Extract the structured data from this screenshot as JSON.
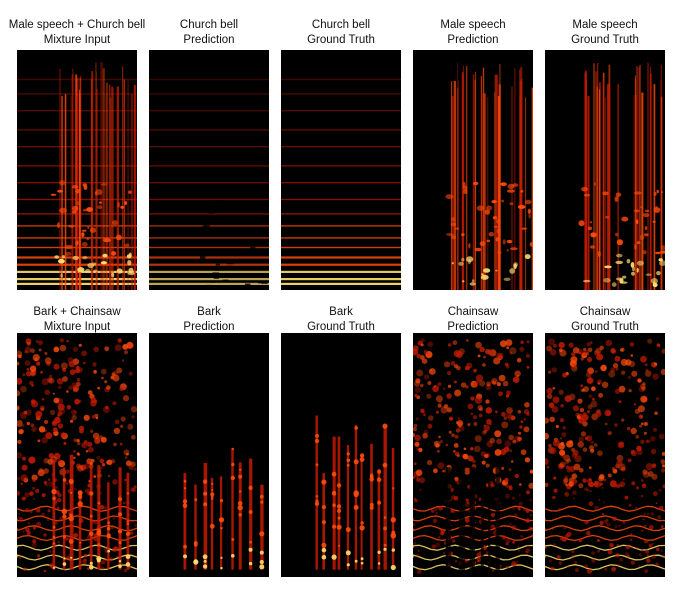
{
  "rows": [
    {
      "panels": [
        {
          "line1": "Male speech + Church bell",
          "line2": "Mixture Input",
          "content": [
            "bell",
            "speech"
          ]
        },
        {
          "line1": "Church bell",
          "line2": "Prediction",
          "content": [
            "bell_pred"
          ]
        },
        {
          "line1": "Church bell",
          "line2": "Ground Truth",
          "content": [
            "bell"
          ]
        },
        {
          "line1": "Male speech",
          "line2": "Prediction",
          "content": [
            "speech"
          ]
        },
        {
          "line1": "Male speech",
          "line2": "Ground Truth",
          "content": [
            "speech"
          ]
        }
      ]
    },
    {
      "panels": [
        {
          "line1": "Bark + Chainsaw",
          "line2": "Mixture Input",
          "content": [
            "chainsaw",
            "bark"
          ]
        },
        {
          "line1": "Bark",
          "line2": "Prediction",
          "content": [
            "bark"
          ]
        },
        {
          "line1": "Bark",
          "line2": "Ground Truth",
          "content": [
            "bark_gt"
          ]
        },
        {
          "line1": "Chainsaw",
          "line2": "Prediction",
          "content": [
            "chainsaw_pred"
          ]
        },
        {
          "line1": "Chainsaw",
          "line2": "Ground Truth",
          "content": [
            "chainsaw"
          ]
        }
      ]
    }
  ],
  "colors": {
    "background": "#000000",
    "hot": "#ff4a0a",
    "warm": "#c41a02",
    "bright": "#ffe070",
    "text": "#111111"
  }
}
